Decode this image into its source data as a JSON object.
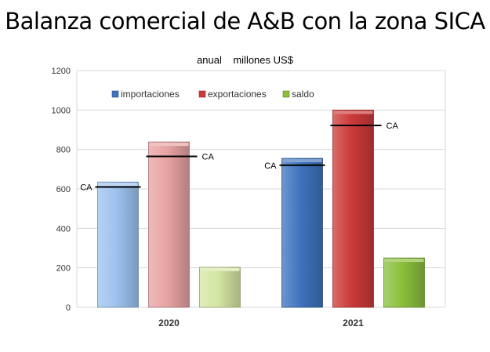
{
  "chart_data": {
    "type": "bar",
    "title": "Balanza comercial de A&B  con  la zona SICA",
    "subtitle": "anual    millones US$",
    "categories": [
      "2020",
      "2021"
    ],
    "series": [
      {
        "name": "importaciones",
        "values": [
          635,
          755
        ]
      },
      {
        "name": "exportaciones",
        "values": [
          838,
          1000
        ]
      },
      {
        "name": "saldo",
        "values": [
          203,
          250
        ]
      }
    ],
    "annotations": [
      {
        "label": "CA",
        "category": "2020",
        "series": "importaciones",
        "value": 610,
        "label_side": "left"
      },
      {
        "label": "CA",
        "category": "2020",
        "series": "exportaciones",
        "value": 765,
        "label_side": "right"
      },
      {
        "label": "CA",
        "category": "2021",
        "series": "importaciones",
        "value": 720,
        "label_side": "left"
      },
      {
        "label": "CA",
        "category": "2021",
        "series": "exportaciones",
        "value": 922,
        "label_side": "right"
      }
    ],
    "ylim": [
      0,
      1200
    ],
    "yticks": [
      0,
      200,
      400,
      600,
      800,
      1000,
      1200
    ],
    "grid": true,
    "legend_position": "top",
    "colors": {
      "2020": {
        "importaciones": "#9dc3f0",
        "exportaciones": "#e8a3a3",
        "saldo": "#d4e6a4"
      },
      "2021": {
        "importaciones": "#3e73bd",
        "exportaciones": "#cc3a3a",
        "saldo": "#8bbf3c"
      },
      "legend": {
        "importaciones": "#3e73bd",
        "exportaciones": "#cc3a3a",
        "saldo": "#8bbf3c"
      }
    }
  }
}
